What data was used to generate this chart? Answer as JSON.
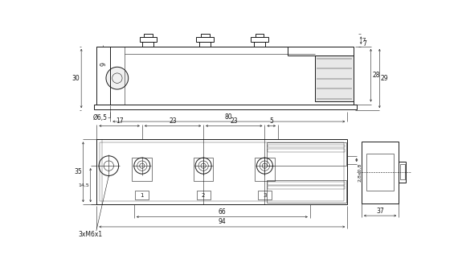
{
  "bg_color": "#ffffff",
  "line_color": "#1a1a1a",
  "dim_color": "#1a1a1a",
  "lw": 0.7,
  "thin_lw": 0.4,
  "dim_lw": 0.4,
  "figsize": [
    5.7,
    3.22
  ],
  "dpi": 100,
  "labels": {
    "30": "30",
    "9": "9",
    "7": "7",
    "28": "28",
    "29": "29",
    "phi65": "Ø6,5",
    "80": "80",
    "35": "35",
    "145": "14,5",
    "17": "17",
    "23a": "23",
    "23b": "23",
    "5": "5",
    "28x08": "2,8x0,8",
    "66": "66",
    "94": "94",
    "3xM6x1": "3xM6x1",
    "37": "37",
    "1": "1",
    "2": "2",
    "3": "3"
  }
}
